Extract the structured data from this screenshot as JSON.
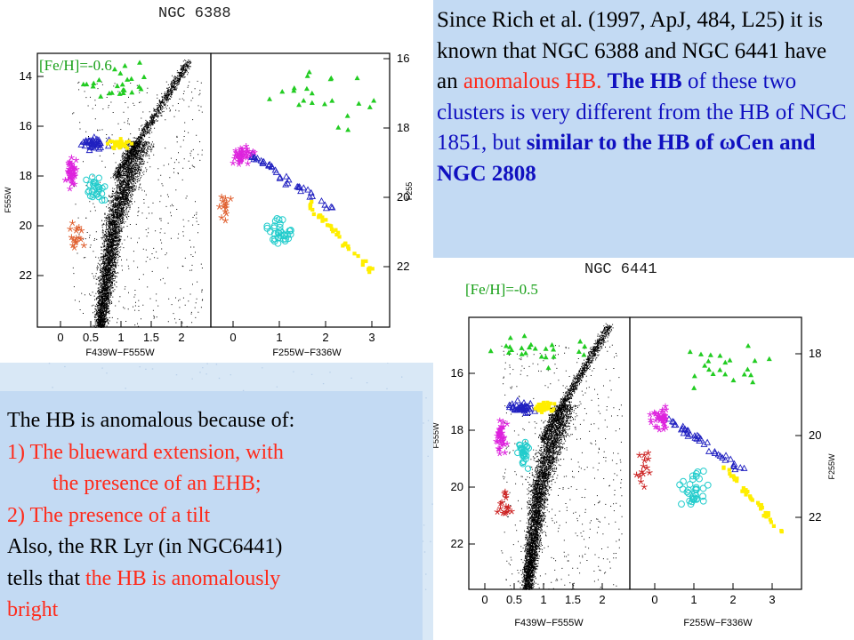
{
  "top_right_text": {
    "part1": "Since Rich et al. (1997, ApJ, 484, L25) it is known that NGC 6388 and NGC 6441 have an ",
    "anomalous": "anomalous HB.",
    "sp": " ",
    "hb_bold": "The HB",
    "part2": " of these two clusters is very different from the HB of NGC 1851, but ",
    "similar_bold": "similar to the HB of  ωCen and NGC 2808"
  },
  "bottom_left_text": {
    "line1": "The HB is anomalous because of:",
    "item1a": "1) The blueward extension, with",
    "item1b": "the presence of an EHB;",
    "item2": "2) The presence of a tilt",
    "line3a": "Also, the RR Lyr (in NGC6441)",
    "line3b_pre": "tells that ",
    "line3b_red": "the HB is anomalously",
    "line3c_red": "bright"
  },
  "figure1": {
    "title": "NGC 6388",
    "metallicity": "[Fe/H]=-0.6",
    "left_ylabel": "F555W",
    "right_ylabel": "F255",
    "left_xlabel": "F439W−F555W",
    "right_xlabel": "F255W−F336W",
    "left_yticks": [
      "14",
      "16",
      "18",
      "20",
      "22"
    ],
    "right_yticks": [
      "16",
      "18",
      "20",
      "22"
    ],
    "left_xticks": [
      "0",
      "0.5",
      "1",
      "1.5",
      "2"
    ],
    "right_xticks": [
      "0",
      "1",
      "2",
      "3"
    ]
  },
  "figure2": {
    "title": "NGC 6441",
    "metallicity": "[Fe/H]=-0.5",
    "left_ylabel": "F555W",
    "right_ylabel": "F255W",
    "left_xlabel": "F439W−F555W",
    "right_xlabel": "F255W−F336W",
    "left_yticks": [
      "16",
      "18",
      "20",
      "22"
    ],
    "right_yticks": [
      "18",
      "20",
      "22"
    ],
    "left_xticks": [
      "0",
      "0.5",
      "1",
      "1.5",
      "2"
    ],
    "right_xticks": [
      "0",
      "1",
      "2",
      "3"
    ]
  },
  "colors": {
    "green_triangles": "#22cc22",
    "blue_triangles": "#2020c0",
    "magenta_stars": "#dd22dd",
    "cyan_circles": "#22cccc",
    "yellow_squares": "#ffee00",
    "orange_stars": "#e06030",
    "red_stars": "#cc2222",
    "text_red": "#ff2a1a",
    "text_blue": "#1010c0",
    "metallicity_green": "#18a018"
  }
}
